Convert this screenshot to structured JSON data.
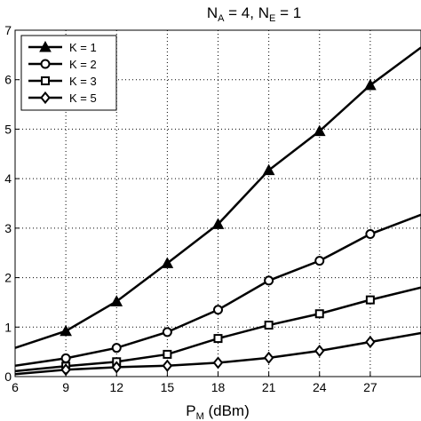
{
  "chart_data": {
    "type": "line",
    "title": {
      "main": "N",
      "sub_a": "A",
      "mid": " = 4, N",
      "sub_e": "E",
      "tail": " = 1"
    },
    "xlabel": {
      "main": "P",
      "sub": "M",
      "tail": " (dBm)"
    },
    "ylabel": "",
    "xlim": [
      6,
      30
    ],
    "ylim": [
      0,
      7
    ],
    "xticks": [
      "6",
      "9",
      "12",
      "15",
      "18",
      "21",
      "24",
      "27"
    ],
    "yticks": [
      "0",
      "1",
      "2",
      "3",
      "4",
      "5",
      "6",
      "7"
    ],
    "grid": true,
    "legend_position": "top-left",
    "series": [
      {
        "name": "K = 1",
        "marker": "triangle",
        "x": [
          6,
          9,
          12,
          15,
          18,
          21,
          24,
          27,
          30
        ],
        "y": [
          0.58,
          0.92,
          1.52,
          2.29,
          3.08,
          4.17,
          4.96,
          5.89,
          6.65
        ]
      },
      {
        "name": "K = 2",
        "marker": "circle",
        "x": [
          6,
          9,
          12,
          15,
          18,
          21,
          24,
          27,
          30
        ],
        "y": [
          0.22,
          0.37,
          0.58,
          0.9,
          1.35,
          1.94,
          2.34,
          2.88,
          3.27
        ]
      },
      {
        "name": "K = 3",
        "marker": "square",
        "x": [
          6,
          9,
          12,
          15,
          18,
          21,
          24,
          27,
          30
        ],
        "y": [
          0.11,
          0.21,
          0.3,
          0.45,
          0.77,
          1.04,
          1.27,
          1.55,
          1.8
        ]
      },
      {
        "name": "K = 5",
        "marker": "diamond",
        "x": [
          6,
          9,
          12,
          15,
          18,
          21,
          24,
          27,
          30
        ],
        "y": [
          0.05,
          0.14,
          0.19,
          0.22,
          0.28,
          0.38,
          0.52,
          0.7,
          0.88
        ]
      }
    ]
  }
}
